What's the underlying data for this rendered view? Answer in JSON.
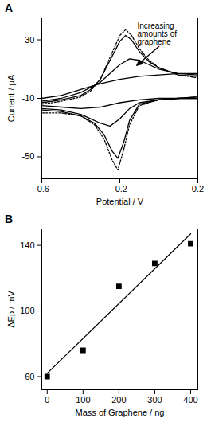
{
  "chart_data": [
    {
      "type": "line",
      "title": "A",
      "x_label": "Potential / V",
      "y_label": "Current / µA",
      "xlim": [
        -0.6,
        0.2
      ],
      "ylim": [
        -65,
        45
      ],
      "xticks": [
        -0.6,
        -0.2,
        0.2
      ],
      "yticks": [
        30,
        -10,
        -50
      ],
      "grid": false,
      "annotations": [
        {
          "text": "Increasing amounts of graphene"
        }
      ],
      "series": [
        {
          "line_style": "dotted",
          "color": "#000000",
          "x": [
            -0.6,
            -0.5,
            -0.4,
            -0.35,
            -0.3,
            -0.25,
            -0.2,
            -0.17,
            -0.14,
            -0.1,
            -0.05,
            0,
            0.1,
            0.2,
            0.2,
            0.1,
            0,
            -0.1,
            -0.15,
            -0.18,
            -0.21,
            -0.24,
            -0.28,
            -0.33,
            -0.4,
            -0.5,
            -0.6
          ],
          "values": [
            -14,
            -12,
            -9,
            -5,
            3,
            18,
            33,
            37,
            33,
            24,
            16,
            11,
            6,
            4,
            -9,
            -10,
            -11,
            -15,
            -28,
            -45,
            -59,
            -52,
            -38,
            -28,
            -22,
            -20,
            -20
          ]
        },
        {
          "line_style": "solid",
          "color": "#000000",
          "x": [
            -0.6,
            -0.5,
            -0.4,
            -0.35,
            -0.3,
            -0.25,
            -0.2,
            -0.17,
            -0.14,
            -0.1,
            -0.05,
            0,
            0.1,
            0.2,
            0.2,
            0.1,
            0,
            -0.1,
            -0.15,
            -0.18,
            -0.21,
            -0.24,
            -0.28,
            -0.33,
            -0.4,
            -0.5,
            -0.6
          ],
          "values": [
            -13,
            -11,
            -8,
            -4,
            3,
            16,
            29,
            33,
            30,
            22,
            15,
            11,
            6,
            5,
            -9,
            -10,
            -11,
            -14,
            -25,
            -40,
            -51,
            -46,
            -35,
            -27,
            -22,
            -19,
            -18
          ]
        },
        {
          "line_style": "solid",
          "color": "#000000",
          "x": [
            -0.6,
            -0.5,
            -0.4,
            -0.3,
            -0.25,
            -0.2,
            -0.15,
            -0.1,
            -0.05,
            0,
            0.1,
            0.2,
            0.2,
            0.1,
            0,
            -0.1,
            -0.15,
            -0.2,
            -0.25,
            -0.3,
            -0.35,
            -0.4,
            -0.5,
            -0.6
          ],
          "values": [
            -12,
            -10,
            -6,
            1,
            7,
            13,
            17,
            16,
            13,
            10,
            7,
            6,
            -10,
            -10,
            -11,
            -13,
            -17,
            -24,
            -29,
            -27,
            -24,
            -21,
            -18,
            -17
          ]
        },
        {
          "line_style": "solid",
          "color": "#000000",
          "x": [
            -0.6,
            -0.5,
            -0.4,
            -0.3,
            -0.2,
            -0.1,
            0,
            0.1,
            0.2,
            0.2,
            0.1,
            0,
            -0.1,
            -0.2,
            -0.3,
            -0.4,
            -0.5,
            -0.6
          ],
          "values": [
            -10,
            -8,
            -4,
            0,
            3,
            5,
            6,
            7,
            7,
            -10,
            -10,
            -10,
            -11,
            -13,
            -16,
            -17,
            -16,
            -15
          ]
        }
      ]
    },
    {
      "type": "scatter",
      "title": "B",
      "x_label": "Mass of Graphene / ng",
      "y_label": "ΔEp / mV",
      "xlim": [
        -15,
        420
      ],
      "ylim": [
        52,
        150
      ],
      "xticks": [
        0,
        100,
        200,
        300,
        400
      ],
      "yticks": [
        60,
        100,
        140
      ],
      "grid": false,
      "series": [
        {
          "type": "scatter",
          "marker": "square",
          "color": "#000000",
          "x": [
            0,
            100,
            200,
            300,
            400
          ],
          "values": [
            60,
            76,
            115,
            129,
            141
          ]
        },
        {
          "type": "line",
          "line_style": "solid",
          "color": "#000000",
          "x": [
            0,
            400
          ],
          "values": [
            62,
            147
          ]
        }
      ]
    }
  ]
}
